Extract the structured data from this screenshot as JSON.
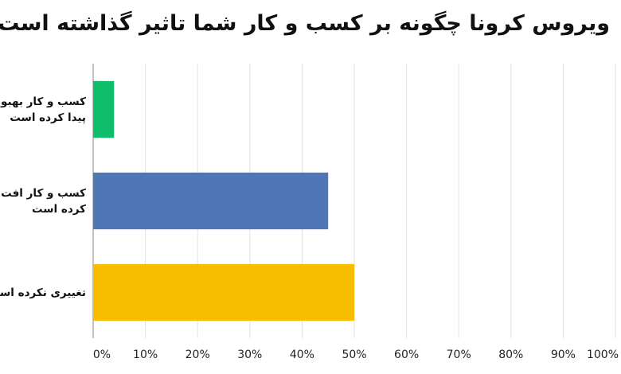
{
  "chart_data": {
    "type": "bar",
    "orientation": "horizontal",
    "title": "ویروس کرونا چگونه بر کسب و کار شما تاثیر گذاشته است؟",
    "categories": [
      "کسب و کار بهبود پیدا کرده است",
      "کسب و کار افت پیدا کرده است",
      "تغییری نکرده است"
    ],
    "category_lines": [
      [
        "کسب و کار بهبود",
        "پیدا کرده است"
      ],
      [
        "کسب و کار افت پیدا",
        "کرده است"
      ],
      [
        "تغییری نکرده است"
      ]
    ],
    "values": [
      4,
      45,
      50
    ],
    "colors": [
      "#0fbd6a",
      "#4f77b5",
      "#f7bd00"
    ],
    "xlim": [
      0,
      100
    ],
    "xticks": [
      0,
      10,
      20,
      30,
      40,
      50,
      60,
      70,
      80,
      90,
      100
    ],
    "xtick_labels": [
      "0%",
      "10%",
      "20%",
      "30%",
      "40%",
      "50%",
      "60%",
      "70%",
      "80%",
      "90%",
      "100%"
    ],
    "grid": true,
    "legend": "none"
  }
}
